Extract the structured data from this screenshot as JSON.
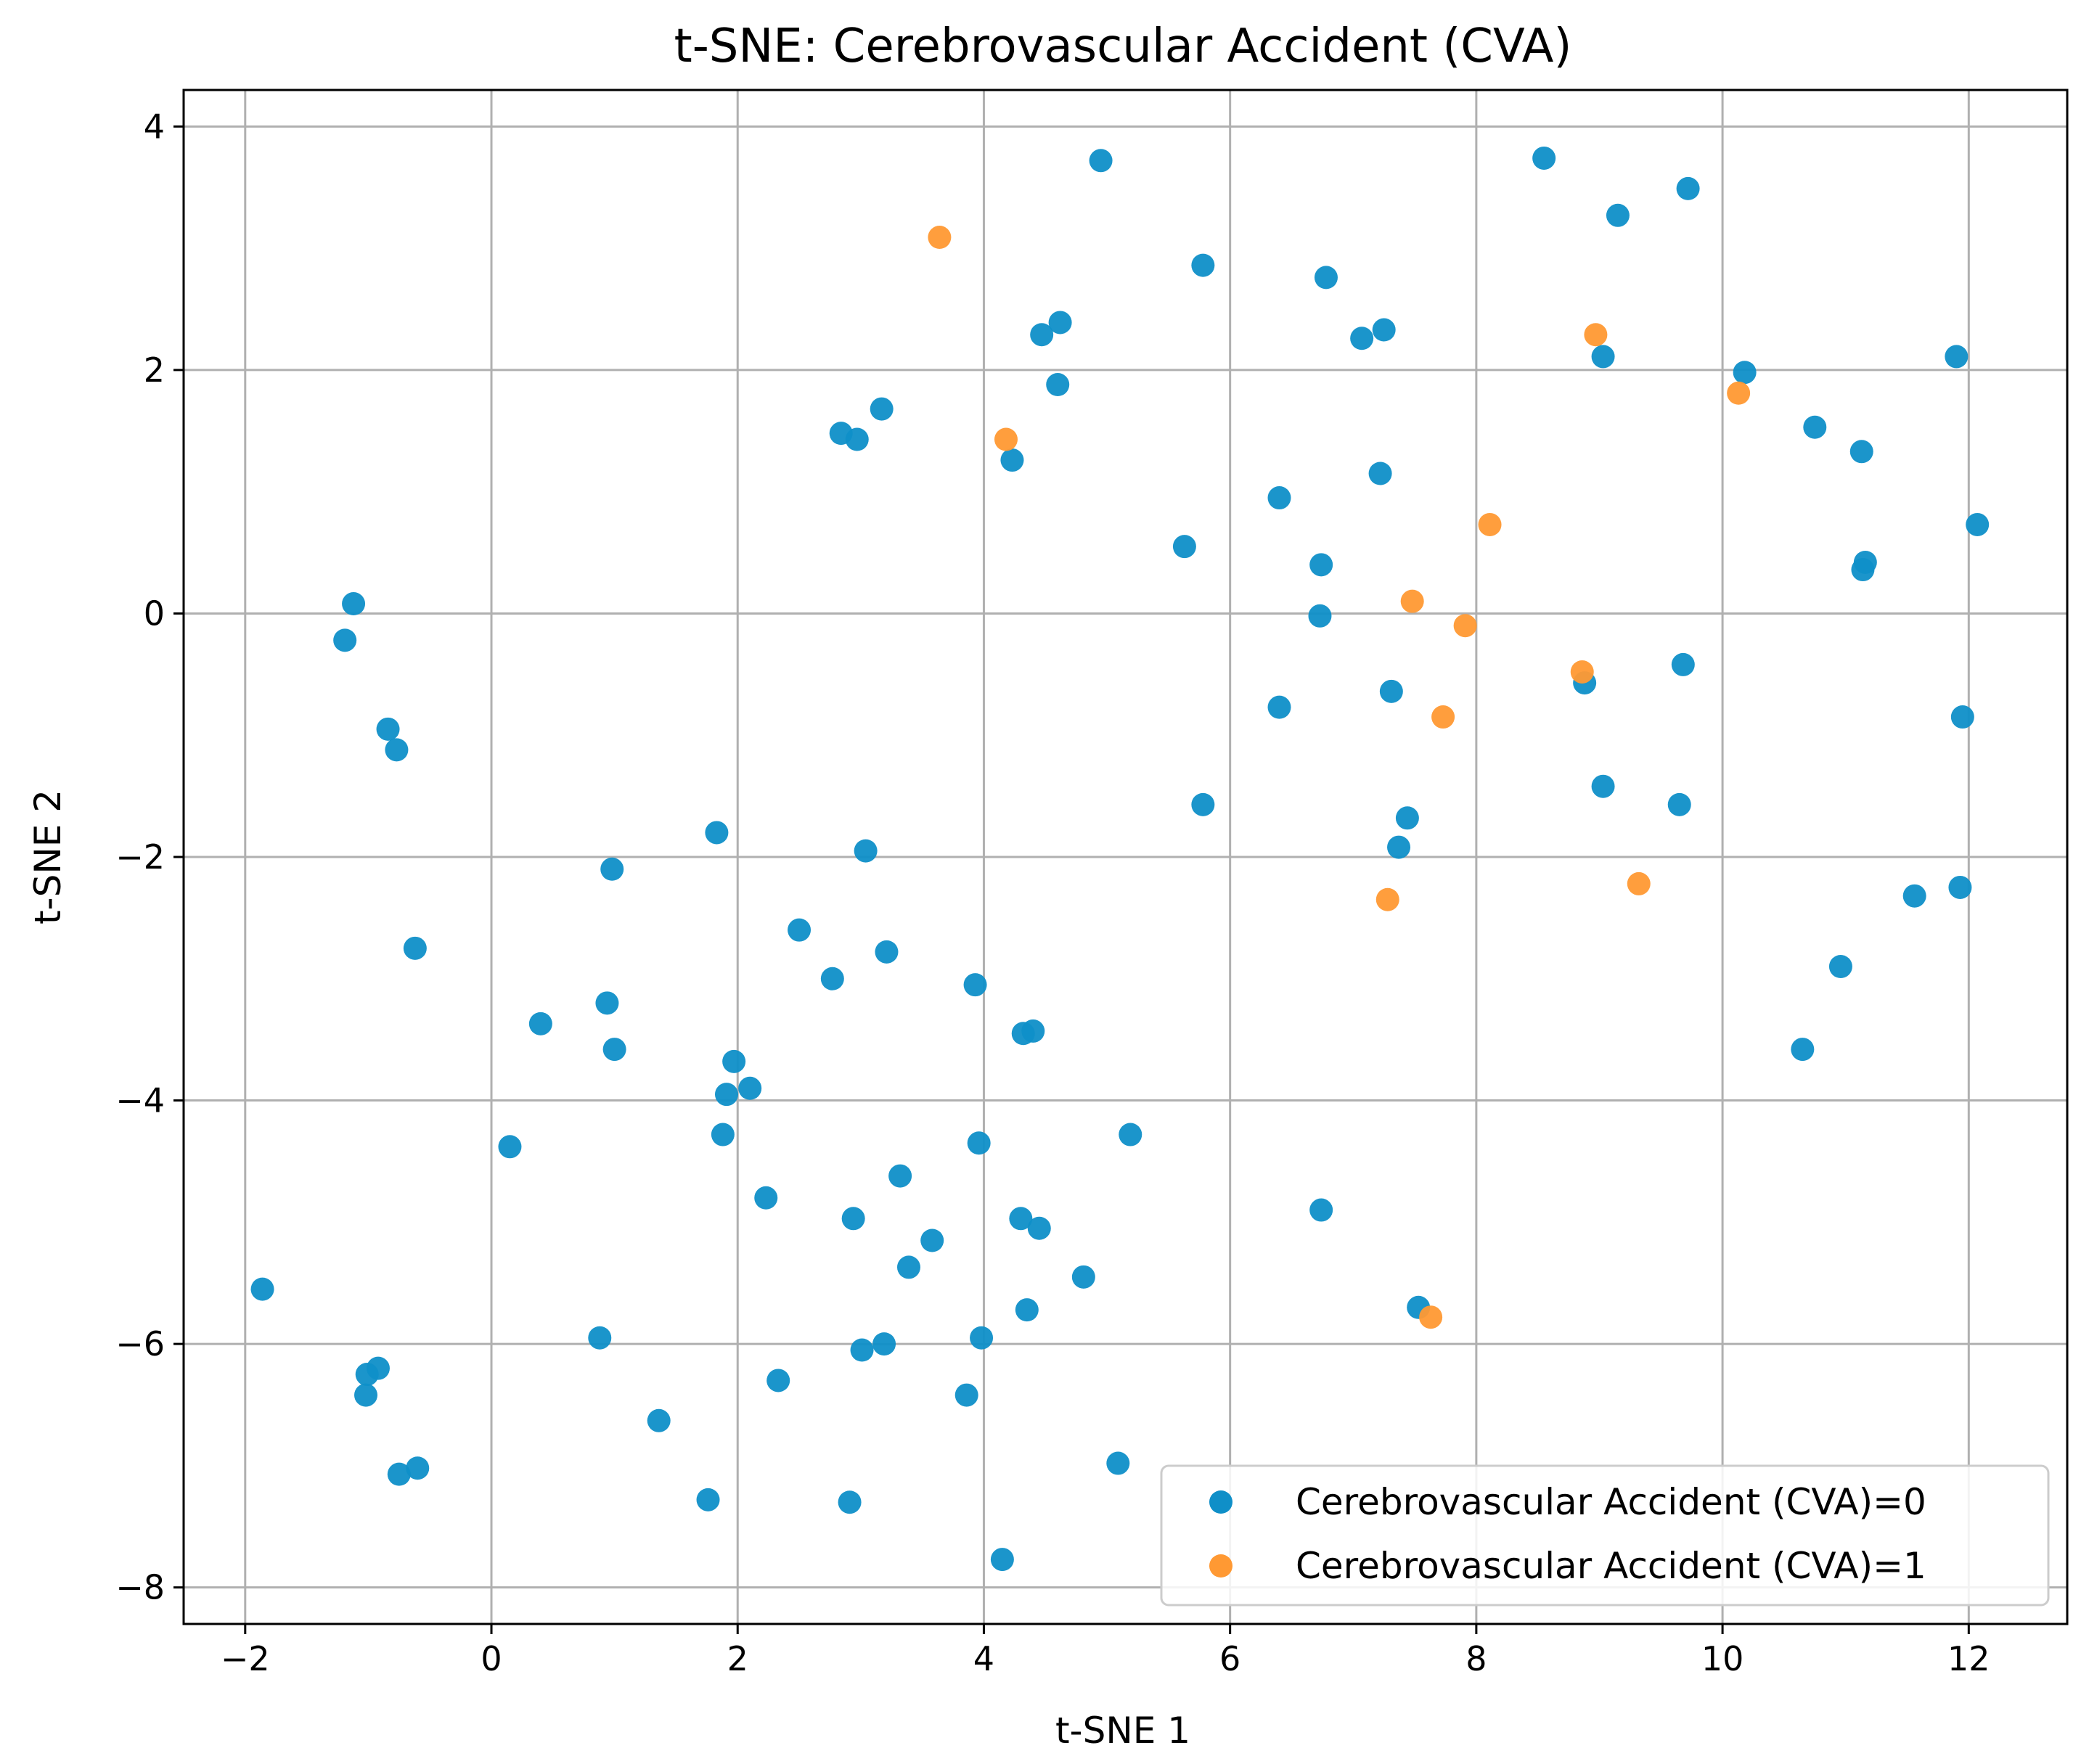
{
  "chart_data": {
    "type": "scatter",
    "title": "t-SNE: Cerebrovascular Accident (CVA)",
    "xlabel": "t-SNE 1",
    "ylabel": "t-SNE 2",
    "xlim": [
      -2.5,
      12.8
    ],
    "ylim": [
      -8.3,
      4.3
    ],
    "xticks": [
      -2,
      0,
      2,
      4,
      6,
      8,
      10,
      12
    ],
    "yticks": [
      -8,
      -6,
      -4,
      -2,
      0,
      2,
      4
    ],
    "xtick_labels": [
      "−2",
      "0",
      "2",
      "4",
      "6",
      "8",
      "10",
      "12"
    ],
    "ytick_labels": [
      "−8",
      "−6",
      "−4",
      "−2",
      "0",
      "2",
      "4"
    ],
    "grid": true,
    "legend_position": "bottom-right",
    "series": [
      {
        "name": "Cerebrovascular Accident (CVA)=0",
        "color": "#0f8fc8",
        "points": [
          [
            4.95,
            3.72
          ],
          [
            8.55,
            3.74
          ],
          [
            9.15,
            3.27
          ],
          [
            9.72,
            3.49
          ],
          [
            5.78,
            2.86
          ],
          [
            6.78,
            2.76
          ],
          [
            4.47,
            2.29
          ],
          [
            4.62,
            2.39
          ],
          [
            7.07,
            2.26
          ],
          [
            7.25,
            2.33
          ],
          [
            9.03,
            2.11
          ],
          [
            11.9,
            2.11
          ],
          [
            10.18,
            1.98
          ],
          [
            4.6,
            1.88
          ],
          [
            3.17,
            1.68
          ],
          [
            2.84,
            1.48
          ],
          [
            2.97,
            1.43
          ],
          [
            10.75,
            1.53
          ],
          [
            11.13,
            1.33
          ],
          [
            4.23,
            1.26
          ],
          [
            7.22,
            1.15
          ],
          [
            6.4,
            0.95
          ],
          [
            12.07,
            0.73
          ],
          [
            5.63,
            0.55
          ],
          [
            6.74,
            0.4
          ],
          [
            11.16,
            0.42
          ],
          [
            11.14,
            0.36
          ],
          [
            -1.12,
            0.08
          ],
          [
            6.73,
            -0.02
          ],
          [
            -1.19,
            -0.22
          ],
          [
            9.68,
            -0.42
          ],
          [
            8.88,
            -0.57
          ],
          [
            7.31,
            -0.64
          ],
          [
            6.4,
            -0.77
          ],
          [
            11.95,
            -0.85
          ],
          [
            -0.84,
            -0.95
          ],
          [
            -0.77,
            -1.12
          ],
          [
            9.03,
            -1.42
          ],
          [
            5.78,
            -1.57
          ],
          [
            9.65,
            -1.57
          ],
          [
            7.44,
            -1.68
          ],
          [
            1.83,
            -1.8
          ],
          [
            7.37,
            -1.92
          ],
          [
            3.04,
            -1.95
          ],
          [
            0.98,
            -2.1
          ],
          [
            11.93,
            -2.25
          ],
          [
            11.56,
            -2.32
          ],
          [
            2.5,
            -2.6
          ],
          [
            -0.62,
            -2.75
          ],
          [
            3.21,
            -2.78
          ],
          [
            10.96,
            -2.9
          ],
          [
            2.77,
            -3.0
          ],
          [
            3.93,
            -3.05
          ],
          [
            0.94,
            -3.2
          ],
          [
            0.4,
            -3.37
          ],
          [
            4.32,
            -3.45
          ],
          [
            4.4,
            -3.43
          ],
          [
            1.0,
            -3.58
          ],
          [
            10.65,
            -3.58
          ],
          [
            1.97,
            -3.68
          ],
          [
            2.1,
            -3.9
          ],
          [
            1.91,
            -3.95
          ],
          [
            1.88,
            -4.28
          ],
          [
            5.19,
            -4.28
          ],
          [
            3.96,
            -4.35
          ],
          [
            0.15,
            -4.38
          ],
          [
            3.32,
            -4.62
          ],
          [
            2.23,
            -4.8
          ],
          [
            6.74,
            -4.9
          ],
          [
            2.94,
            -4.97
          ],
          [
            4.3,
            -4.97
          ],
          [
            4.45,
            -5.05
          ],
          [
            3.58,
            -5.15
          ],
          [
            3.39,
            -5.37
          ],
          [
            4.81,
            -5.45
          ],
          [
            -1.86,
            -5.55
          ],
          [
            7.53,
            -5.7
          ],
          [
            4.35,
            -5.72
          ],
          [
            0.88,
            -5.95
          ],
          [
            3.98,
            -5.95
          ],
          [
            3.01,
            -6.05
          ],
          [
            3.19,
            -6.0
          ],
          [
            -0.92,
            -6.2
          ],
          [
            -1.01,
            -6.25
          ],
          [
            2.33,
            -6.3
          ],
          [
            -1.02,
            -6.42
          ],
          [
            3.86,
            -6.42
          ],
          [
            1.36,
            -6.63
          ],
          [
            5.09,
            -6.98
          ],
          [
            -0.75,
            -7.07
          ],
          [
            -0.6,
            -7.02
          ],
          [
            1.76,
            -7.28
          ],
          [
            2.91,
            -7.3
          ],
          [
            4.15,
            -7.77
          ]
        ]
      },
      {
        "name": "Cerebrovascular Accident (CVA)=1",
        "color": "#ff9933",
        "points": [
          [
            3.64,
            3.09
          ],
          [
            8.97,
            2.29
          ],
          [
            10.13,
            1.81
          ],
          [
            4.18,
            1.43
          ],
          [
            8.11,
            0.73
          ],
          [
            7.48,
            0.1
          ],
          [
            7.91,
            -0.1
          ],
          [
            8.86,
            -0.48
          ],
          [
            7.73,
            -0.85
          ],
          [
            9.32,
            -2.22
          ],
          [
            7.28,
            -2.35
          ],
          [
            7.63,
            -5.78
          ]
        ]
      }
    ]
  }
}
